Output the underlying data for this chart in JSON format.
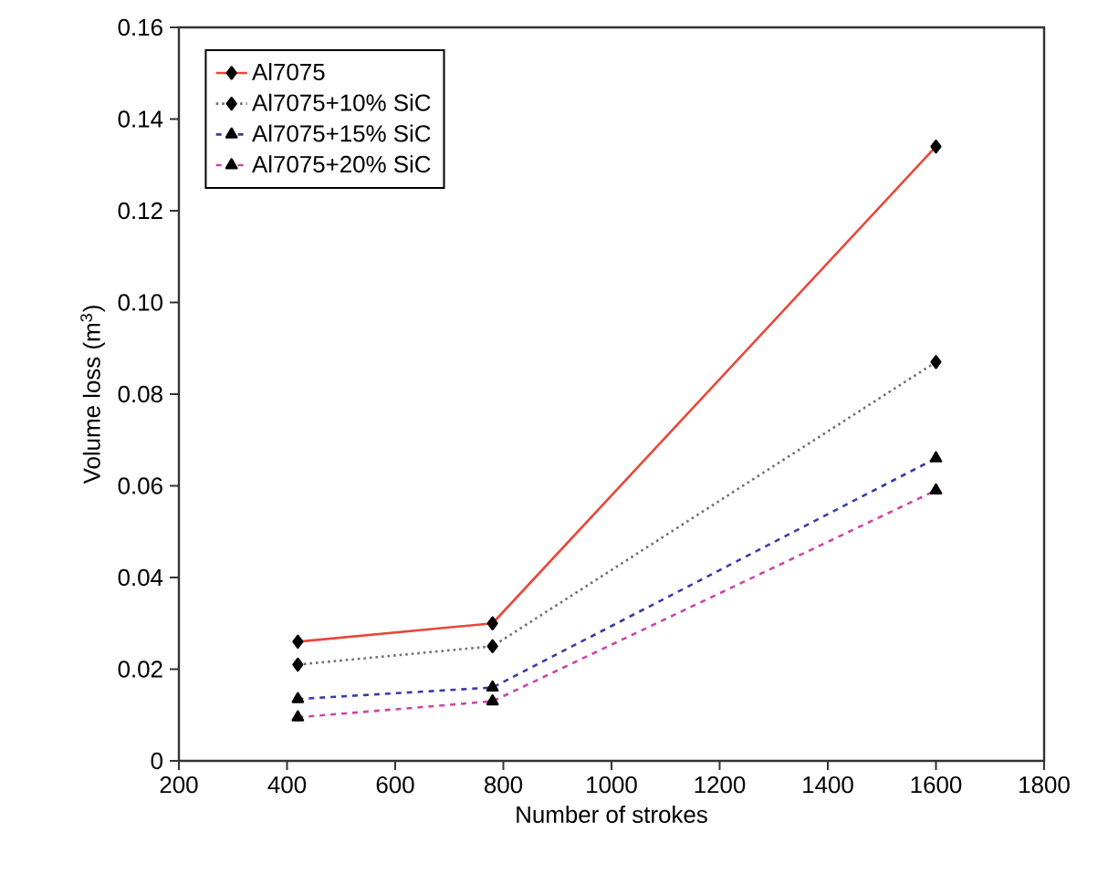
{
  "chart_data": {
    "type": "line",
    "xlabel": "Number of strokes",
    "ylabel": "Volume loss (m$^{3}$)",
    "x": [
      420,
      780,
      1600
    ],
    "series": [
      {
        "name": "Al7075",
        "color": "#e8473a",
        "values": [
          0.026,
          0.03,
          0.134
        ],
        "marker": "diamond",
        "line_style": "solid"
      },
      {
        "name": "Al7075+10% SiC",
        "color": "#707070",
        "values": [
          0.021,
          0.025,
          0.087
        ],
        "marker": "diamond",
        "line_style": "dotted"
      },
      {
        "name": "Al7075+15% SiC",
        "color": "#3a3aa8",
        "values": [
          0.0135,
          0.016,
          0.066
        ],
        "marker": "triangle",
        "line_style": "dashed"
      },
      {
        "name": "Al7075+20% SiC",
        "color": "#cc44aa",
        "values": [
          0.0095,
          0.013,
          0.059
        ],
        "marker": "triangle",
        "line_style": "dashed"
      }
    ],
    "xlim": [
      200,
      1800
    ],
    "xticks": [
      200,
      400,
      600,
      800,
      1000,
      1200,
      1400,
      1600,
      1800
    ],
    "ylim": [
      0,
      0.16
    ],
    "yticks": [
      0,
      0.02,
      0.04,
      0.06,
      0.08,
      {
        "value": 0.1,
        "label": "0.10"
      },
      0.12,
      0.14,
      0.16
    ],
    "grid": false,
    "legend": "top left"
  }
}
